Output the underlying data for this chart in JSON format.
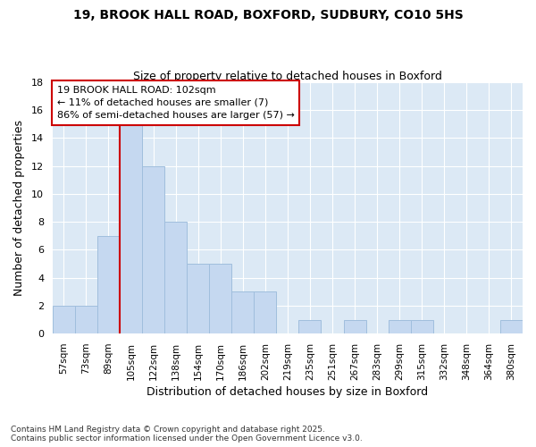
{
  "title_line1": "19, BROOK HALL ROAD, BOXFORD, SUDBURY, CO10 5HS",
  "title_line2": "Size of property relative to detached houses in Boxford",
  "xlabel": "Distribution of detached houses by size in Boxford",
  "ylabel": "Number of detached properties",
  "footer_line1": "Contains HM Land Registry data © Crown copyright and database right 2025.",
  "footer_line2": "Contains public sector information licensed under the Open Government Licence v3.0.",
  "categories": [
    "57sqm",
    "73sqm",
    "89sqm",
    "105sqm",
    "122sqm",
    "138sqm",
    "154sqm",
    "170sqm",
    "186sqm",
    "202sqm",
    "219sqm",
    "235sqm",
    "251sqm",
    "267sqm",
    "283sqm",
    "299sqm",
    "315sqm",
    "332sqm",
    "348sqm",
    "364sqm",
    "380sqm"
  ],
  "values": [
    2,
    2,
    7,
    15,
    12,
    8,
    5,
    5,
    3,
    3,
    0,
    1,
    0,
    1,
    0,
    1,
    1,
    0,
    0,
    0,
    1
  ],
  "bar_color": "#c5d8f0",
  "bar_edge_color": "#a0bedd",
  "plot_bg_color": "#dce9f5",
  "figure_bg_color": "#ffffff",
  "grid_color": "#ffffff",
  "annotation_text": "19 BROOK HALL ROAD: 102sqm\n← 11% of detached houses are smaller (7)\n86% of semi-detached houses are larger (57) →",
  "vline_x_index": 3,
  "vline_color": "#cc0000",
  "annotation_box_color": "white",
  "annotation_box_edge_color": "#cc0000",
  "ylim": [
    0,
    18
  ],
  "yticks": [
    0,
    2,
    4,
    6,
    8,
    10,
    12,
    14,
    16,
    18
  ]
}
